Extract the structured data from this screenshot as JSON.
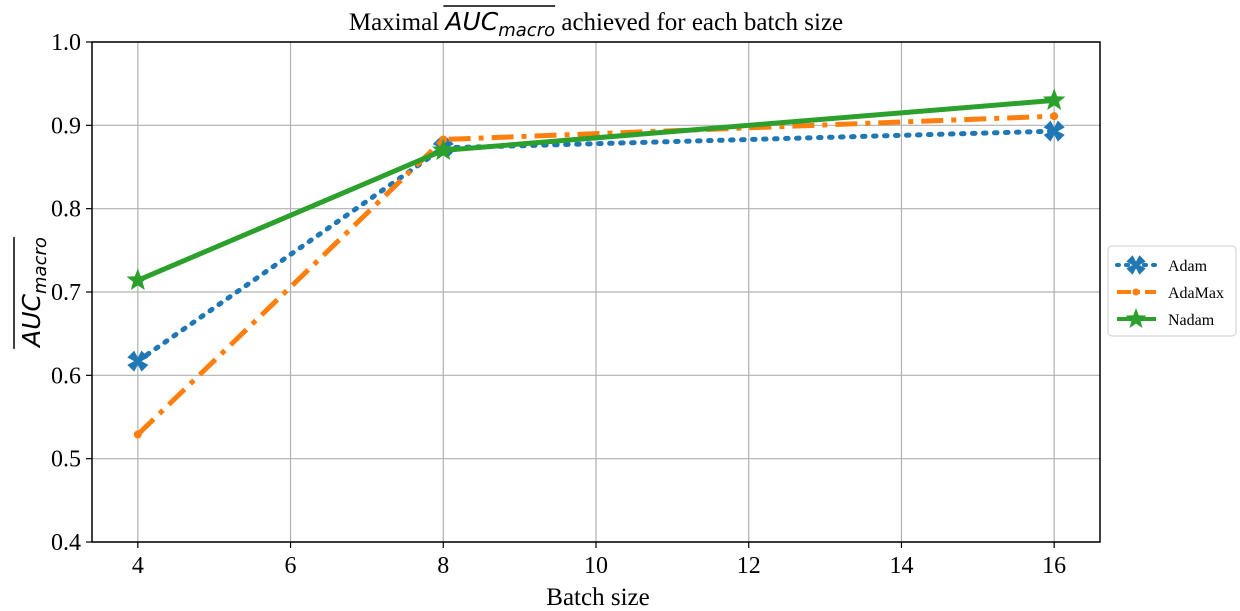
{
  "chart_data": {
    "type": "line",
    "title": {
      "prefix": "Maximal ",
      "math_main": "AUC",
      "math_sub": "macro",
      "suffix": " achieved for each batch size"
    },
    "xlabel": "Batch size",
    "ylabel": {
      "math_main": "AUC",
      "math_sub": "macro"
    },
    "xlim": [
      3.4,
      16.6
    ],
    "ylim": [
      0.4,
      1.0
    ],
    "xticks": [
      4,
      6,
      8,
      10,
      12,
      14,
      16
    ],
    "xtick_labels": [
      "4",
      "6",
      "8",
      "10",
      "12",
      "14",
      "16"
    ],
    "yticks": [
      0.4,
      0.5,
      0.6,
      0.7,
      0.8,
      0.9,
      1.0
    ],
    "ytick_labels": [
      "0.4",
      "0.5",
      "0.6",
      "0.7",
      "0.8",
      "0.9",
      "1.0"
    ],
    "grid": true,
    "legend_position": "right-outside",
    "x": [
      4,
      8,
      16
    ],
    "series": [
      {
        "name": "Adam",
        "values": [
          0.617,
          0.873,
          0.893
        ],
        "color": "#1f77b4",
        "linestyle": "dotted",
        "marker": "x-filled"
      },
      {
        "name": "AdaMax",
        "values": [
          0.529,
          0.883,
          0.911
        ],
        "color": "#ff7f0e",
        "linestyle": "dashdot",
        "marker": "circle"
      },
      {
        "name": "Nadam",
        "values": [
          0.714,
          0.87,
          0.93
        ],
        "color": "#2ca02c",
        "linestyle": "solid",
        "marker": "star"
      }
    ]
  }
}
